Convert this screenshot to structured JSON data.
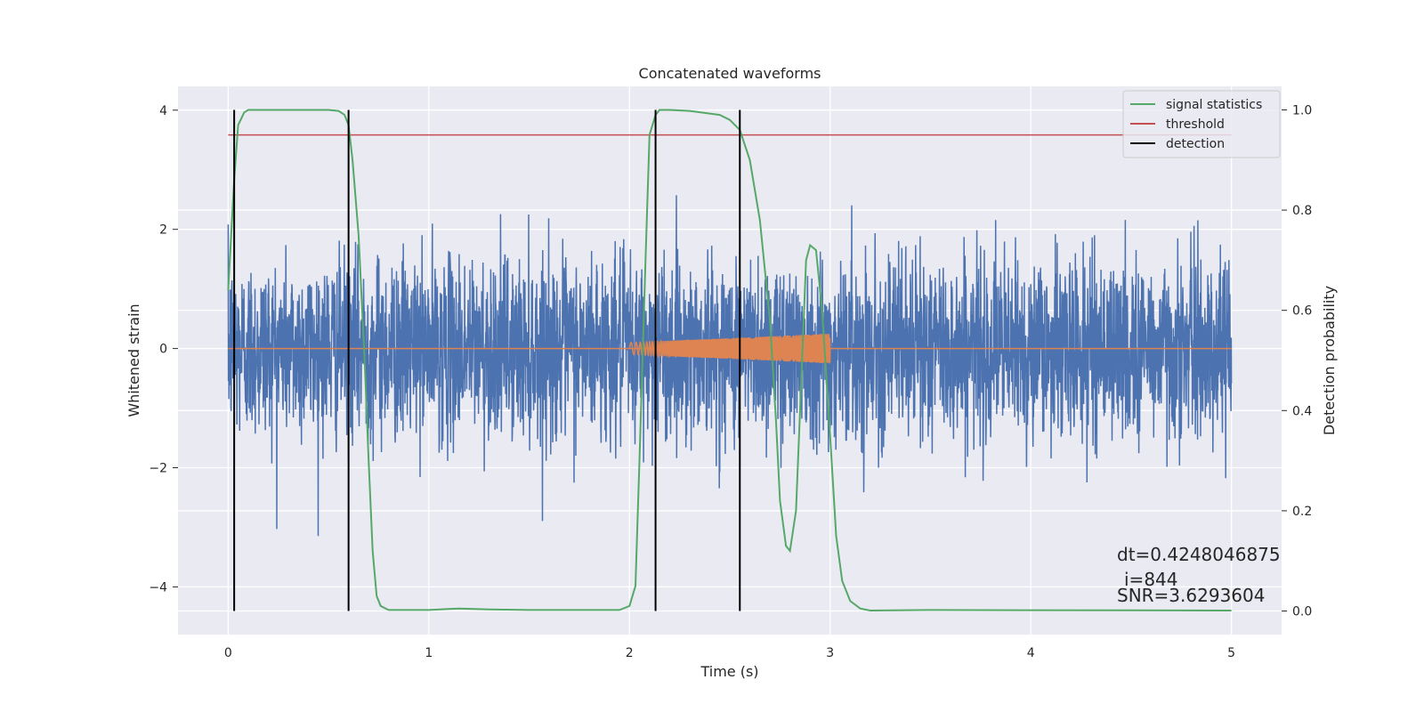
{
  "chart_data": {
    "type": "line",
    "title": "Concatenated waveforms",
    "xlabel": "Time (s)",
    "ylabel": "Whitened strain",
    "y2label": "Detection probability",
    "xlim": [
      -0.25,
      5.25
    ],
    "ylim": [
      -4.8,
      4.4
    ],
    "y2lim": [
      -0.047,
      1.047
    ],
    "xticks": [
      0,
      1,
      2,
      3,
      4,
      5
    ],
    "xtick_labels": [
      "0",
      "1",
      "2",
      "3",
      "4",
      "5"
    ],
    "yticks": [
      -4,
      -2,
      0,
      2,
      4
    ],
    "ytick_labels": [
      "−4",
      "−2",
      "0",
      "2",
      "4"
    ],
    "y2ticks": [
      0.0,
      0.2,
      0.4,
      0.6,
      0.8,
      1.0
    ],
    "y2tick_labels": [
      "0.0",
      "0.2",
      "0.4",
      "0.6",
      "0.8",
      "1.0"
    ],
    "grid": true,
    "legend_position": "top-right",
    "legend": [
      {
        "label": "signal statistics",
        "color": "#55a868"
      },
      {
        "label": "threshold",
        "color": "#c44e52"
      },
      {
        "label": "detection",
        "color": "#000000"
      }
    ],
    "series": [
      {
        "name": "whitened strain",
        "axis": "left",
        "color": "#4c72b0",
        "kind": "noise",
        "x_range": [
          0,
          5
        ],
        "std": 1.0
      },
      {
        "name": "injected waveform",
        "axis": "left",
        "color": "#dd8452",
        "kind": "chirp",
        "x_range": [
          2,
          3
        ],
        "amplitude_range": [
          0.1,
          0.25
        ],
        "baseline": 0
      },
      {
        "name": "signal statistics",
        "axis": "right",
        "color": "#55a868",
        "x": [
          0,
          0.03,
          0.05,
          0.08,
          0.1,
          0.2,
          0.5,
          0.55,
          0.58,
          0.6,
          0.62,
          0.65,
          0.68,
          0.7,
          0.72,
          0.74,
          0.76,
          0.8,
          1.0,
          1.15,
          1.3,
          1.5,
          1.8,
          1.95,
          2.0,
          2.03,
          2.05,
          2.08,
          2.1,
          2.13,
          2.15,
          2.2,
          2.3,
          2.45,
          2.5,
          2.55,
          2.6,
          2.65,
          2.7,
          2.73,
          2.75,
          2.78,
          2.8,
          2.83,
          2.86,
          2.88,
          2.9,
          2.93,
          2.96,
          3.0,
          3.03,
          3.06,
          3.1,
          3.15,
          3.2,
          3.5,
          5.0
        ],
        "y": [
          0.64,
          0.86,
          0.97,
          0.995,
          1.0,
          1.0,
          1.0,
          0.998,
          0.99,
          0.97,
          0.9,
          0.75,
          0.5,
          0.3,
          0.12,
          0.03,
          0.01,
          0.002,
          0.002,
          0.005,
          0.003,
          0.002,
          0.002,
          0.002,
          0.01,
          0.05,
          0.3,
          0.7,
          0.95,
          0.99,
          1.0,
          1.0,
          0.998,
          0.99,
          0.98,
          0.96,
          0.9,
          0.78,
          0.58,
          0.38,
          0.22,
          0.13,
          0.12,
          0.2,
          0.5,
          0.7,
          0.73,
          0.72,
          0.6,
          0.35,
          0.15,
          0.06,
          0.02,
          0.005,
          0.001,
          0.002,
          0.001
        ]
      },
      {
        "name": "threshold",
        "axis": "right",
        "color": "#c44e52",
        "x": [
          0,
          5
        ],
        "y": [
          0.95,
          0.95
        ]
      }
    ],
    "detections": [
      0.03,
      0.6,
      2.13,
      2.55
    ],
    "detection_range_y2": [
      0.0,
      1.0
    ]
  },
  "annotations": {
    "dt": "dt=0.4248046875",
    "i": "i=844",
    "snr": "SNR=3.6293604"
  }
}
